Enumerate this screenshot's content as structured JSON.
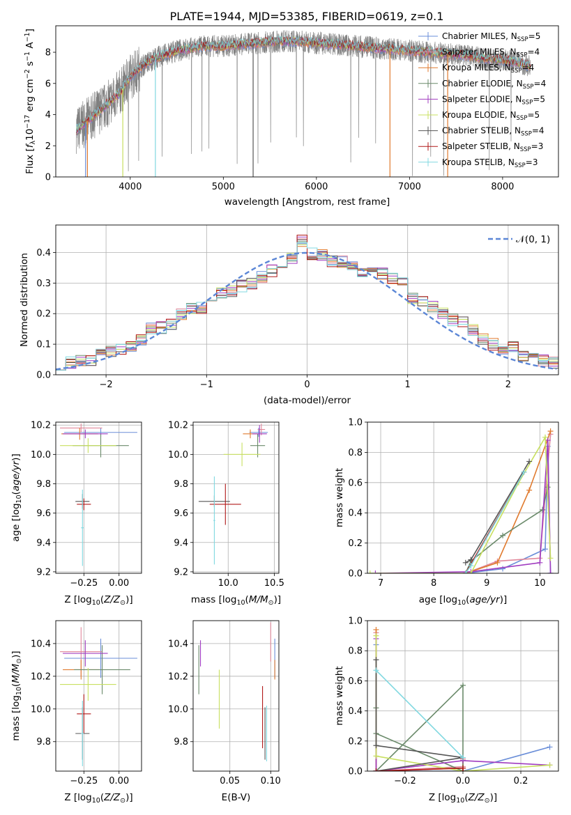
{
  "figure_title": "PLATE=1944, MJD=53385, FIBERID=0619, z=0.1",
  "colors": {
    "chabrier_miles": "#6a8ed8",
    "salpeter_miles": "#e0879a",
    "kroupa_miles": "#e07a2e",
    "chabrier_elodie": "#6a8a6a",
    "salpeter_elodie": "#a03cc0",
    "kroupa_elodie": "#c8e060",
    "chabrier_stelib": "#555555",
    "salpeter_stelib": "#b01818",
    "kroupa_stelib": "#80d8e0",
    "spectrum": "#808080",
    "grid": "#b0b0b0"
  },
  "chart_data": [
    {
      "id": "spectrum",
      "type": "line",
      "title": "",
      "xlabel": "wavelength [Angstrom, rest frame]",
      "ylabel": "Flux [f_λ 10^-17 erg cm^-2 s^-1 A^-1]",
      "xlim": [
        3200,
        8600
      ],
      "ylim": [
        0,
        9.7
      ],
      "xticks": [
        "4000",
        "5000",
        "6000",
        "7000",
        "8000"
      ],
      "yticks": [
        "0",
        "2",
        "4",
        "6",
        "8"
      ],
      "grid": false,
      "legend_position": "upper-right",
      "spectrum_profile": {
        "x": [
          3420,
          3500,
          3600,
          3700,
          3800,
          3900,
          4000,
          4100,
          4200,
          4300,
          4400,
          4500,
          4600,
          4700,
          4800,
          4900,
          5000,
          5200,
          5400,
          5600,
          5800,
          6000,
          6200,
          6400,
          6600,
          6800,
          7000,
          7200,
          7400,
          7600,
          7800,
          8000,
          8200,
          8300
        ],
        "y": [
          3.0,
          3.4,
          3.9,
          4.4,
          4.9,
          5.5,
          6.4,
          7.0,
          7.4,
          7.7,
          7.9,
          8.1,
          8.2,
          8.3,
          8.4,
          8.4,
          8.4,
          8.5,
          8.6,
          8.7,
          8.7,
          8.6,
          8.5,
          8.4,
          8.3,
          8.2,
          8.1,
          8.0,
          7.9,
          7.8,
          7.6,
          7.5,
          7.3,
          7.1
        ]
      },
      "dropouts": [
        {
          "x": 3520,
          "series": "Chabrier MILES"
        },
        {
          "x": 3540,
          "series": "Kroupa MILES"
        },
        {
          "x": 3920,
          "series": "Kroupa ELODIE"
        },
        {
          "x": 4270,
          "series": "Kroupa STELIB"
        },
        {
          "x": 5320,
          "series": "Chabrier STELIB"
        },
        {
          "x": 6790,
          "series": "Kroupa MILES"
        },
        {
          "x": 7410,
          "series": "Kroupa MILES"
        }
      ],
      "series": [
        {
          "name": "Chabrier MILES, N_SSP=5",
          "label_main": "Chabrier MILES, N",
          "label_sub": "SSP",
          "label_tail": "=5",
          "key": "chabrier_miles"
        },
        {
          "name": "Salpeter MILES, N_SSP=4",
          "label_main": "Salpeter MILES, N",
          "label_sub": "SSP",
          "label_tail": "=4",
          "key": "salpeter_miles"
        },
        {
          "name": "Kroupa MILES, N_SSP=4",
          "label_main": "Kroupa MILES, N",
          "label_sub": "SSP",
          "label_tail": "=4",
          "key": "kroupa_miles"
        },
        {
          "name": "Chabrier ELODIE, N_SSP=4",
          "label_main": "Chabrier ELODIE, N",
          "label_sub": "SSP",
          "label_tail": "=4",
          "key": "chabrier_elodie"
        },
        {
          "name": "Salpeter ELODIE, N_SSP=5",
          "label_main": "Salpeter ELODIE, N",
          "label_sub": "SSP",
          "label_tail": "=5",
          "key": "salpeter_elodie"
        },
        {
          "name": "Kroupa ELODIE, N_SSP=5",
          "label_main": "Kroupa ELODIE, N",
          "label_sub": "SSP",
          "label_tail": "=5",
          "key": "kroupa_elodie"
        },
        {
          "name": "Chabrier STELIB, N_SSP=4",
          "label_main": "Chabrier STELIB, N",
          "label_sub": "SSP",
          "label_tail": "=4",
          "key": "chabrier_stelib"
        },
        {
          "name": "Salpeter STELIB, N_SSP=3",
          "label_main": "Salpeter STELIB, N",
          "label_sub": "SSP",
          "label_tail": "=3",
          "key": "salpeter_stelib"
        },
        {
          "name": "Kroupa STELIB, N_SSP=3",
          "label_main": "Kroupa STELIB, N",
          "label_sub": "SSP",
          "label_tail": "=3",
          "key": "kroupa_stelib"
        }
      ]
    },
    {
      "id": "residuals",
      "type": "histogram",
      "xlabel": "(data-model)/error",
      "ylabel": "Normed distribution",
      "xlim": [
        -2.5,
        2.5
      ],
      "ylim": [
        0,
        0.49
      ],
      "xticks": [
        "−2",
        "−1",
        "0",
        "1",
        "2"
      ],
      "yticks": [
        "0.0",
        "0.1",
        "0.2",
        "0.3",
        "0.4"
      ],
      "grid": true,
      "legend": "𝒩(0, 1)",
      "legend_position": "upper-right",
      "bin_width": 0.1,
      "reference_curve": "normal(0,1)",
      "bin_centers": [
        -2.45,
        -2.35,
        -2.25,
        -2.15,
        -2.05,
        -1.95,
        -1.85,
        -1.75,
        -1.65,
        -1.55,
        -1.45,
        -1.35,
        -1.25,
        -1.15,
        -1.05,
        -0.95,
        -0.85,
        -0.75,
        -0.65,
        -0.55,
        -0.45,
        -0.35,
        -0.25,
        -0.15,
        -0.05,
        0.05,
        0.15,
        0.25,
        0.35,
        0.45,
        0.55,
        0.65,
        0.75,
        0.85,
        0.95,
        1.05,
        1.15,
        1.25,
        1.35,
        1.45,
        1.55,
        1.65,
        1.75,
        1.85,
        1.95,
        2.05,
        2.15,
        2.25,
        2.35,
        2.45
      ],
      "base_values": [
        0.035,
        0.04,
        0.045,
        0.05,
        0.065,
        0.075,
        0.085,
        0.095,
        0.115,
        0.15,
        0.155,
        0.165,
        0.2,
        0.22,
        0.22,
        0.245,
        0.27,
        0.275,
        0.29,
        0.3,
        0.32,
        0.34,
        0.36,
        0.38,
        0.44,
        0.395,
        0.39,
        0.37,
        0.37,
        0.36,
        0.34,
        0.345,
        0.33,
        0.315,
        0.3,
        0.25,
        0.24,
        0.225,
        0.2,
        0.18,
        0.175,
        0.145,
        0.115,
        0.1,
        0.08,
        0.09,
        0.065,
        0.06,
        0.045,
        0.04
      ]
    },
    {
      "id": "age_vs_Z",
      "type": "errorbar",
      "xlabel": "Z [log10(Z/Z⊙)]",
      "ylabel": "age [log10(age/yr)]",
      "xlim": [
        -0.45,
        0.16
      ],
      "ylim": [
        9.19,
        10.22
      ],
      "xticks": [
        "−0.25",
        "0.00"
      ],
      "yticks": [
        "9.2",
        "9.4",
        "9.6",
        "9.8",
        "10.0",
        "10.2"
      ],
      "grid": true,
      "points": [
        {
          "key": "chabrier_miles",
          "x": -0.13,
          "xerr": 0.26,
          "y": 10.15,
          "yerr": 0.03
        },
        {
          "key": "salpeter_miles",
          "x": -0.27,
          "xerr": 0.15,
          "y": 10.18,
          "yerr": 0.03
        },
        {
          "key": "kroupa_miles",
          "x": -0.28,
          "xerr": 0.13,
          "y": 10.14,
          "yerr": 0.04
        },
        {
          "key": "chabrier_elodie",
          "x": -0.13,
          "xerr": 0.2,
          "y": 10.06,
          "yerr": 0.08
        },
        {
          "key": "salpeter_elodie",
          "x": -0.24,
          "xerr": 0.16,
          "y": 10.14,
          "yerr": 0.03
        },
        {
          "key": "kroupa_elodie",
          "x": -0.22,
          "xerr": 0.2,
          "y": 10.06,
          "yerr": 0.05
        },
        {
          "key": "chabrier_stelib",
          "x": -0.26,
          "xerr": 0.05,
          "y": 9.68,
          "yerr": 0.05
        },
        {
          "key": "salpeter_stelib",
          "x": -0.25,
          "xerr": 0.05,
          "y": 9.66,
          "yerr": 0.04
        },
        {
          "key": "kroupa_stelib",
          "x": -0.26,
          "xerr": 0.01,
          "y": 9.5,
          "yerr": 0.26
        }
      ]
    },
    {
      "id": "age_vs_mass",
      "type": "errorbar",
      "xlabel": "mass [log10(M/M⊙)]",
      "ylabel": "",
      "xlim": [
        9.62,
        10.55
      ],
      "ylim": [
        9.19,
        10.22
      ],
      "xticks": [
        "10.0",
        "10.5"
      ],
      "yticks": [
        "9.2",
        "9.4",
        "9.6",
        "9.8",
        "10.0",
        "10.2"
      ],
      "grid": true,
      "points": [
        {
          "key": "chabrier_miles",
          "x": 10.33,
          "xerr": 0.1,
          "y": 10.15,
          "yerr": 0.03
        },
        {
          "key": "salpeter_miles",
          "x": 10.36,
          "xerr": 0.04,
          "y": 10.17,
          "yerr": 0.04
        },
        {
          "key": "kroupa_miles",
          "x": 10.24,
          "xerr": 0.08,
          "y": 10.14,
          "yerr": 0.03
        },
        {
          "key": "chabrier_elodie",
          "x": 10.32,
          "xerr": 0.08,
          "y": 10.06,
          "yerr": 0.08
        },
        {
          "key": "salpeter_elodie",
          "x": 10.34,
          "xerr": 0.08,
          "y": 10.14,
          "yerr": 0.06
        },
        {
          "key": "kroupa_elodie",
          "x": 10.15,
          "xerr": 0.2,
          "y": 10.0,
          "yerr": 0.08
        },
        {
          "key": "chabrier_stelib",
          "x": 9.85,
          "xerr": 0.17,
          "y": 9.68,
          "yerr": 0.04
        },
        {
          "key": "salpeter_stelib",
          "x": 9.97,
          "xerr": 0.17,
          "y": 9.66,
          "yerr": 0.14
        },
        {
          "key": "kroupa_stelib",
          "x": 9.85,
          "xerr": 0.01,
          "y": 9.55,
          "yerr": 0.3
        }
      ]
    },
    {
      "id": "massweight_vs_age",
      "type": "line",
      "xlabel": "age [log10(age/yr)]",
      "ylabel": "mass weight",
      "xlim": [
        6.75,
        10.35
      ],
      "ylim": [
        0,
        1
      ],
      "xticks": [
        "7",
        "8",
        "9",
        "10"
      ],
      "yticks": [
        "0.0",
        "0.2",
        "0.4",
        "0.6",
        "0.8",
        "1.0"
      ],
      "grid": true,
      "series": [
        {
          "key": "chabrier_miles",
          "x": [
            8.6,
            9.3,
            10.1,
            10.15,
            10.2
          ],
          "y": [
            0.0,
            0.03,
            0.16,
            0.84,
            0.0
          ]
        },
        {
          "key": "salpeter_miles",
          "x": [
            8.6,
            9.2,
            10.0,
            10.2
          ],
          "y": [
            0.0,
            0.08,
            0.1,
            0.92
          ]
        },
        {
          "key": "kroupa_miles",
          "x": [
            8.6,
            9.2,
            9.8,
            10.2
          ],
          "y": [
            0.0,
            0.07,
            0.55,
            0.94
          ]
        },
        {
          "key": "chabrier_elodie",
          "x": [
            8.6,
            8.7,
            9.3,
            10.05,
            10.15
          ],
          "y": [
            0.0,
            0.08,
            0.25,
            0.42,
            0.57
          ]
        },
        {
          "key": "salpeter_elodie",
          "x": [
            6.9,
            8.7,
            10.0,
            10.15,
            10.2
          ],
          "y": [
            0.0,
            0.01,
            0.07,
            0.88,
            0.0
          ]
        },
        {
          "key": "kroupa_elodie",
          "x": [
            6.8,
            8.7,
            9.6,
            10.1,
            10.2
          ],
          "y": [
            0.0,
            0.0,
            0.6,
            0.9,
            0.1
          ]
        },
        {
          "key": "chabrier_stelib",
          "x": [
            8.6,
            8.7,
            9.8
          ],
          "y": [
            0.07,
            0.09,
            0.74
          ]
        },
        {
          "key": "salpeter_stelib",
          "x": [
            8.6,
            9.7
          ],
          "y": [
            0.0,
            0.67
          ]
        },
        {
          "key": "kroupa_stelib",
          "x": [
            8.6,
            8.7,
            9.7
          ],
          "y": [
            0.0,
            0.05,
            0.67
          ]
        }
      ]
    },
    {
      "id": "mass_vs_Z",
      "type": "errorbar",
      "xlabel": "Z [log10(Z/Z⊙)]",
      "ylabel": "mass [log10(M/M⊙)]",
      "xlim": [
        -0.45,
        0.16
      ],
      "ylim": [
        9.62,
        10.54
      ],
      "xticks": [
        "−0.25",
        "0.00"
      ],
      "yticks": [
        "9.8",
        "10.0",
        "10.2",
        "10.4"
      ],
      "grid": true,
      "points": [
        {
          "key": "chabrier_miles",
          "x": -0.13,
          "xerr": 0.26,
          "y": 10.31,
          "yerr": 0.12
        },
        {
          "key": "salpeter_miles",
          "x": -0.27,
          "xerr": 0.15,
          "y": 10.35,
          "yerr": 0.15
        },
        {
          "key": "kroupa_miles",
          "x": -0.27,
          "xerr": 0.13,
          "y": 10.24,
          "yerr": 0.06
        },
        {
          "key": "chabrier_elodie",
          "x": -0.12,
          "xerr": 0.2,
          "y": 10.24,
          "yerr": 0.15
        },
        {
          "key": "salpeter_elodie",
          "x": -0.24,
          "xerr": 0.16,
          "y": 10.34,
          "yerr": 0.08
        },
        {
          "key": "kroupa_elodie",
          "x": -0.22,
          "xerr": 0.2,
          "y": 10.15,
          "yerr": 0.1
        },
        {
          "key": "chabrier_stelib",
          "x": -0.26,
          "xerr": 0.05,
          "y": 9.85,
          "yerr": 0.16
        },
        {
          "key": "salpeter_stelib",
          "x": -0.25,
          "xerr": 0.05,
          "y": 9.97,
          "yerr": 0.12
        },
        {
          "key": "kroupa_stelib",
          "x": -0.26,
          "xerr": 0.01,
          "y": 9.85,
          "yerr": 0.2
        }
      ]
    },
    {
      "id": "mass_vs_ebv",
      "type": "errorbar",
      "xlabel": "E(B-V)",
      "ylabel": "",
      "xlim": [
        0.005,
        0.11
      ],
      "ylim": [
        9.62,
        10.54
      ],
      "xticks": [
        "0.05",
        "0.10"
      ],
      "yticks": [
        "9.8",
        "10.0",
        "10.2",
        "10.4"
      ],
      "grid": true,
      "points": [
        {
          "key": "chabrier_miles",
          "x": 0.105,
          "y": 10.31,
          "yerr": 0.12
        },
        {
          "key": "salpeter_miles",
          "x": 0.1,
          "y": 10.41,
          "yerr": 0.12
        },
        {
          "key": "kroupa_miles",
          "x": 0.105,
          "y": 10.24,
          "yerr": 0.06
        },
        {
          "key": "chabrier_elodie",
          "x": 0.012,
          "y": 10.24,
          "yerr": 0.15
        },
        {
          "key": "salpeter_elodie",
          "x": 0.014,
          "y": 10.34,
          "yerr": 0.08
        },
        {
          "key": "kroupa_elodie",
          "x": 0.037,
          "y": 10.06,
          "yerr": 0.18
        },
        {
          "key": "chabrier_stelib",
          "x": 0.093,
          "y": 9.85,
          "yerr": 0.16
        },
        {
          "key": "salpeter_stelib",
          "x": 0.09,
          "y": 9.95,
          "yerr": 0.19
        },
        {
          "key": "kroupa_stelib",
          "x": 0.095,
          "y": 9.85,
          "yerr": 0.17
        }
      ]
    },
    {
      "id": "massweight_vs_Z",
      "type": "line",
      "xlabel": "Z [log10(Z/Z⊙)]",
      "ylabel": "mass weight",
      "xlim": [
        -0.33,
        0.33
      ],
      "ylim": [
        0,
        1
      ],
      "xticks": [
        "−0.2",
        "0.0",
        "0.2"
      ],
      "yticks": [
        "0.0",
        "0.2",
        "0.4",
        "0.6",
        "0.8",
        "1.0"
      ],
      "grid": true,
      "series": [
        {
          "key": "chabrier_miles",
          "x": [
            -0.3,
            -0.3,
            0.0,
            0.3
          ],
          "y": [
            0.84,
            0.0,
            0.0,
            0.16
          ]
        },
        {
          "key": "salpeter_miles",
          "x": [
            -0.3,
            -0.3,
            0.0,
            0.0
          ],
          "y": [
            0.92,
            0.0,
            0.03,
            0.08
          ]
        },
        {
          "key": "kroupa_miles",
          "x": [
            -0.3,
            -0.3,
            0.0,
            0.0
          ],
          "y": [
            0.94,
            0.0,
            0.02,
            0.07
          ]
        },
        {
          "key": "chabrier_elodie",
          "x": [
            -0.3,
            -0.3,
            0.0,
            0.0,
            -0.3
          ],
          "y": [
            0.42,
            0.25,
            0.0,
            0.57,
            0.0
          ]
        },
        {
          "key": "salpeter_elodie",
          "x": [
            -0.3,
            -0.3,
            0.0,
            0.3
          ],
          "y": [
            0.88,
            0.0,
            0.07,
            0.04
          ]
        },
        {
          "key": "kroupa_elodie",
          "x": [
            -0.3,
            -0.3,
            0.0,
            0.3
          ],
          "y": [
            0.9,
            0.1,
            0.0,
            0.04
          ]
        },
        {
          "key": "chabrier_stelib",
          "x": [
            -0.3,
            -0.3,
            0.0,
            -0.3
          ],
          "y": [
            0.74,
            0.17,
            0.09,
            0.0
          ]
        },
        {
          "key": "salpeter_stelib",
          "x": [
            -0.3,
            0.0,
            0.0
          ],
          "y": [
            0.0,
            0.02,
            0.0
          ]
        },
        {
          "key": "kroupa_stelib",
          "x": [
            -0.3,
            0.0
          ],
          "y": [
            0.67,
            0.09
          ]
        }
      ]
    }
  ]
}
